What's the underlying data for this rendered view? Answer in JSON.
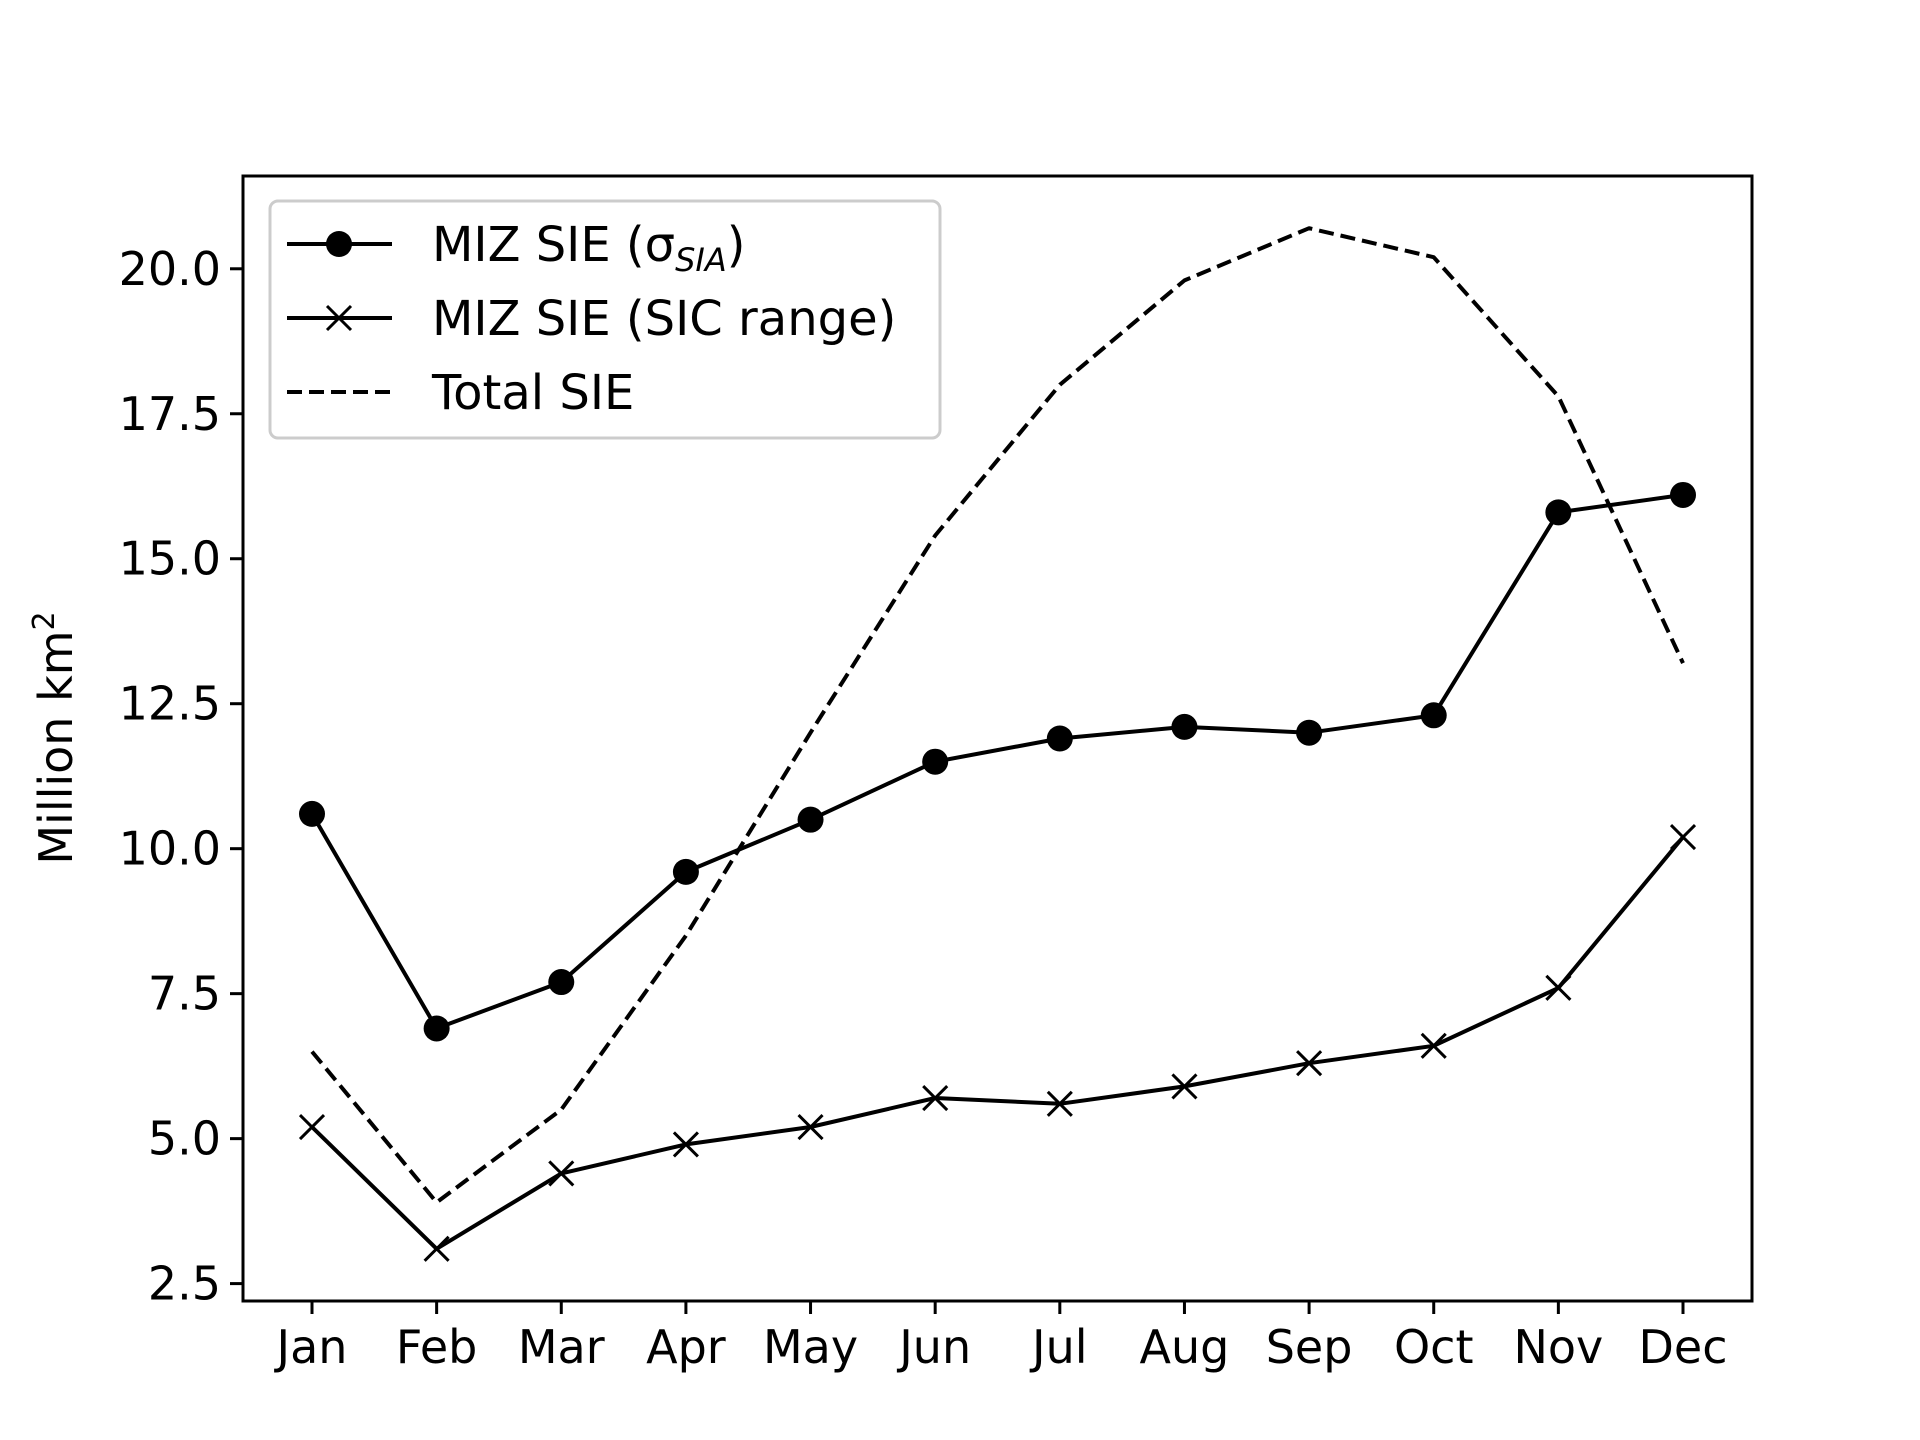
{
  "chart_data": {
    "type": "line",
    "title": "",
    "xlabel": "",
    "ylabel": "Million km",
    "ylabel_superscript": "2",
    "categories": [
      "Jan",
      "Feb",
      "Mar",
      "Apr",
      "May",
      "Jun",
      "Jul",
      "Aug",
      "Sep",
      "Oct",
      "Nov",
      "Dec"
    ],
    "ylim": [
      2.2,
      21.6
    ],
    "yticks": [
      "2.5",
      "5.0",
      "7.5",
      "10.0",
      "12.5",
      "15.0",
      "17.5",
      "20.0"
    ],
    "grid": false,
    "legend_placement": "top-left",
    "series": [
      {
        "name": "MIZ SIE (σ",
        "name_subscript": "SIA",
        "name_suffix": ")",
        "marker": "circle",
        "line_style": "solid",
        "color": "#000000",
        "values": [
          10.6,
          6.9,
          7.7,
          9.6,
          10.5,
          11.5,
          11.9,
          12.1,
          12.0,
          12.3,
          15.8,
          16.1
        ]
      },
      {
        "name": "MIZ SIE (SIC range)",
        "marker": "x",
        "line_style": "solid",
        "color": "#000000",
        "values": [
          5.2,
          3.1,
          4.4,
          4.9,
          5.2,
          5.7,
          5.6,
          5.9,
          6.3,
          6.6,
          7.6,
          10.2
        ]
      },
      {
        "name": "Total SIE",
        "marker": "none",
        "line_style": "dashed",
        "color": "#000000",
        "values": [
          6.5,
          3.9,
          5.5,
          8.5,
          12.0,
          15.4,
          18.0,
          19.8,
          20.7,
          20.2,
          17.8,
          13.2
        ]
      }
    ]
  }
}
